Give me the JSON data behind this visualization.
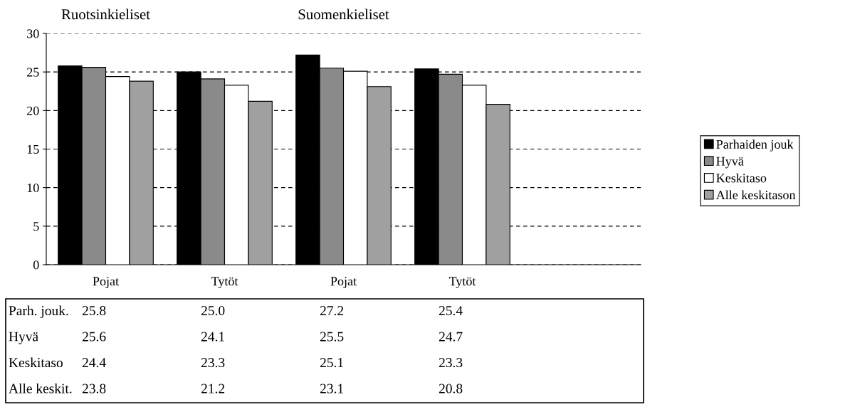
{
  "chart_data": {
    "type": "bar",
    "categories": [
      "Pojat",
      "Tytöt",
      "Pojat",
      "Tytöt",
      null
    ],
    "series": [
      {
        "name": "Parhaiden jouk",
        "color": "#000000",
        "values": [
          25.8,
          25.0,
          27.2,
          25.4,
          null
        ],
        "value_labels": [
          "25.8",
          "25.0",
          "27.2",
          "25.4",
          null
        ]
      },
      {
        "name": "Hyvä",
        "color": "#8a8a8a",
        "values": [
          25.6,
          24.1,
          25.5,
          24.7,
          null
        ],
        "value_labels": [
          "25.6",
          "24.1",
          "25.5",
          "24.7",
          null
        ]
      },
      {
        "name": "Keskitaso",
        "color": "#ffffff",
        "values": [
          24.4,
          23.3,
          25.1,
          23.3,
          null
        ],
        "value_labels": [
          "24.4",
          "23.3",
          "25.1",
          "23.3",
          null
        ]
      },
      {
        "name": "Alle keskitason",
        "color": "#a0a0a0",
        "values": [
          23.8,
          21.2,
          23.1,
          20.8,
          null
        ],
        "value_labels": [
          "23.8",
          "21.2",
          "23.1",
          "20.8",
          null
        ]
      }
    ],
    "annotations": [
      "Ruotsinkieliset",
      "Suomenkieliset",
      "Parh. jouk.",
      "Hyvä",
      "Keskitaso",
      "Alle keskit."
    ],
    "ylim": [
      0,
      30
    ],
    "yticks": [
      0,
      5,
      10,
      15,
      20,
      25,
      30
    ],
    "grid": "y",
    "legend": "right"
  }
}
